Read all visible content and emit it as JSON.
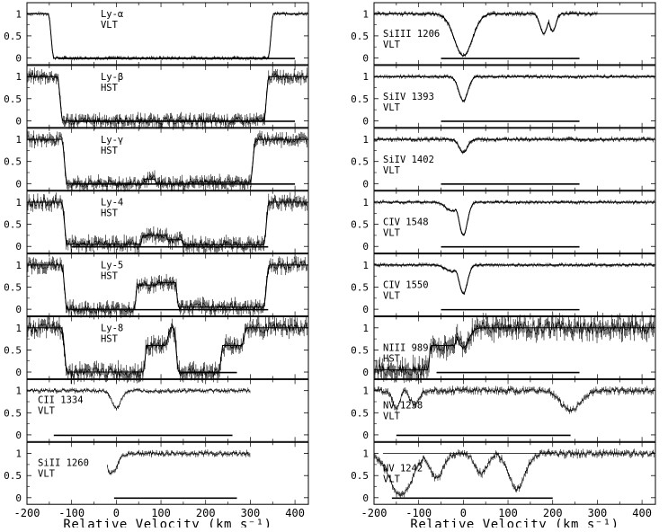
{
  "chart_data": {
    "type": "line",
    "xlabel": "Relative Velocity (km s⁻¹)",
    "xlim": [
      -200,
      430
    ],
    "xticks": [
      -200,
      -100,
      0,
      100,
      200,
      300,
      400
    ],
    "yticks": [
      0,
      0.5,
      1
    ],
    "ylim": [
      -0.15,
      1.25
    ],
    "columns": [
      {
        "panels": [
          {
            "id": "ly-alpha",
            "line": "Ly-α",
            "instrument": "VLT",
            "noise": 0.025,
            "fit": true,
            "dips": [
              [
                -140,
                340,
                -1,
                1.0,
                0.0,
                0
              ]
            ],
            "bar": [
              -130,
              400
            ]
          },
          {
            "id": "ly-beta",
            "line": "Ly-β",
            "instrument": "HST",
            "noise": 0.09,
            "fit": true,
            "dips": [
              [
                -120,
                330,
                -1,
                1.0,
                0.0,
                0
              ]
            ],
            "bar": [
              -105,
              400
            ]
          },
          {
            "id": "ly-gamma",
            "line": "Ly-γ",
            "instrument": "HST",
            "noise": 0.09,
            "fit": true,
            "dips": [
              [
                -110,
                60,
                -1,
                1.0,
                0.0,
                0
              ],
              [
                60,
                90,
                -1,
                1.0,
                0.1,
                0
              ],
              [
                90,
                160,
                -1,
                1.0,
                0.0,
                0
              ],
              [
                160,
                300,
                -1,
                1.0,
                0.03,
                0
              ]
            ],
            "bar": [
              -100,
              400
            ]
          },
          {
            "id": "ly-4",
            "line": "Ly-4",
            "instrument": "HST",
            "noise": 0.1,
            "fit": true,
            "dips": [
              [
                -110,
                55,
                -1,
                1.0,
                0.05,
                0
              ],
              [
                55,
                115,
                -1,
                1.0,
                0.25,
                0
              ],
              [
                115,
                150,
                -1,
                1.0,
                0.15,
                0
              ],
              [
                150,
                330,
                -1,
                1.0,
                0.04,
                0
              ]
            ],
            "bar": [
              -100,
              340
            ]
          },
          {
            "id": "ly-5",
            "line": "Ly-5",
            "instrument": "HST",
            "noise": 0.1,
            "fit": true,
            "dips": [
              [
                -110,
                40,
                -1,
                1.0,
                0.0,
                0
              ],
              [
                40,
                90,
                -1,
                1.0,
                0.55,
                0
              ],
              [
                90,
                140,
                -1,
                1.0,
                0.6,
                0
              ],
              [
                140,
                330,
                -1,
                1.0,
                0.05,
                0
              ]
            ],
            "bar": [
              -100,
              340
            ]
          },
          {
            "id": "ly-8",
            "line": "Ly-8",
            "instrument": "HST",
            "noise": 0.12,
            "fit": true,
            "dips": [
              [
                -110,
                60,
                -1,
                1.0,
                0.0,
                0
              ],
              [
                60,
                110,
                -1,
                1.0,
                0.6,
                0
              ],
              [
                140,
                230,
                -1,
                1.0,
                0.0,
                0
              ],
              [
                230,
                280,
                -1,
                1.0,
                0.6,
                0
              ]
            ],
            "bar": [
              140,
              270
            ]
          },
          {
            "id": "c2-1334",
            "line": "CII 1334",
            "instrument": "VLT",
            "noise": 0.03,
            "fit": false,
            "dips": [
              [
                0,
                0,
                10,
                1.0,
                0.6,
                0
              ]
            ],
            "bar": [
              -140,
              260
            ],
            "xmax": 300
          },
          {
            "id": "si2-1260",
            "line": "SiII 1260",
            "instrument": "VLT",
            "noise": 0.04,
            "fit": false,
            "dips": [
              [
                -10,
                -10,
                12,
                1.0,
                0.55,
                0
              ]
            ],
            "bar": [
              -5,
              270
            ],
            "xmin": -20,
            "xmax": 300
          }
        ]
      },
      {
        "panels": [
          {
            "id": "si3-1206",
            "line": "SiIII 1206",
            "instrument": "VLT",
            "noise": 0.03,
            "fit": true,
            "dips": [
              [
                -10,
                10,
                20,
                1.0,
                0.05,
                0
              ],
              [
                180,
                180,
                8,
                1.0,
                0.55,
                0
              ],
              [
                200,
                200,
                7,
                1.0,
                0.6,
                0
              ]
            ],
            "bar": [
              -50,
              260
            ],
            "xmax": 300
          },
          {
            "id": "si4-1393",
            "line": "SiIV 1393",
            "instrument": "VLT",
            "noise": 0.025,
            "fit": true,
            "dips": [
              [
                0,
                0,
                10,
                1.0,
                0.45,
                0
              ]
            ],
            "bar": [
              -50,
              260
            ]
          },
          {
            "id": "si4-1402",
            "line": "SiIV 1402",
            "instrument": "VLT",
            "noise": 0.03,
            "fit": true,
            "dips": [
              [
                0,
                0,
                9,
                1.0,
                0.7,
                0
              ]
            ],
            "bar": [
              -50,
              260
            ]
          },
          {
            "id": "c4-1548",
            "line": "CIV 1548",
            "instrument": "VLT",
            "noise": 0.025,
            "fit": true,
            "dips": [
              [
                -25,
                -25,
                14,
                1.0,
                0.8,
                0
              ],
              [
                0,
                0,
                9,
                1.0,
                0.25,
                0
              ]
            ],
            "bar": [
              -50,
              260
            ]
          },
          {
            "id": "c4-1550",
            "line": "CIV 1550",
            "instrument": "VLT",
            "noise": 0.025,
            "fit": true,
            "dips": [
              [
                -25,
                -25,
                14,
                1.0,
                0.85,
                0
              ],
              [
                0,
                0,
                9,
                1.0,
                0.35,
                0
              ]
            ],
            "bar": [
              -50,
              260
            ]
          },
          {
            "id": "n3-989",
            "line": "NIII 989",
            "instrument": "HST",
            "noise": 0.15,
            "fit": true,
            "dips": [
              [
                -200,
                -80,
                -1,
                1.0,
                0.05,
                0
              ],
              [
                -80,
                -20,
                -1,
                1.0,
                0.6,
                0
              ],
              [
                0,
                0,
                12,
                1.0,
                0.55,
                0
              ]
            ],
            "bar": [
              -60,
              260
            ]
          },
          {
            "id": "n5-1238",
            "line": "NV 1238",
            "instrument": "VLT",
            "noise": 0.05,
            "fit": false,
            "dips": [
              [
                -150,
                -150,
                8,
                1.0,
                0.6,
                0
              ],
              [
                -110,
                -110,
                10,
                1.0,
                0.7,
                0
              ],
              [
                240,
                240,
                22,
                1.0,
                0.55,
                0
              ]
            ],
            "bar": [
              -150,
              240
            ]
          },
          {
            "id": "n5-1242",
            "line": "NV 1242",
            "instrument": "VLT",
            "noise": 0.05,
            "fit": false,
            "dips": [
              [
                -140,
                -140,
                25,
                1.0,
                0.05,
                0
              ],
              [
                -60,
                -60,
                15,
                1.0,
                0.45,
                0
              ],
              [
                40,
                40,
                14,
                1.0,
                0.55,
                0
              ],
              [
                120,
                120,
                18,
                1.0,
                0.2,
                0
              ]
            ],
            "bar": [
              -160,
              200
            ],
            "refline": true
          }
        ]
      }
    ]
  }
}
